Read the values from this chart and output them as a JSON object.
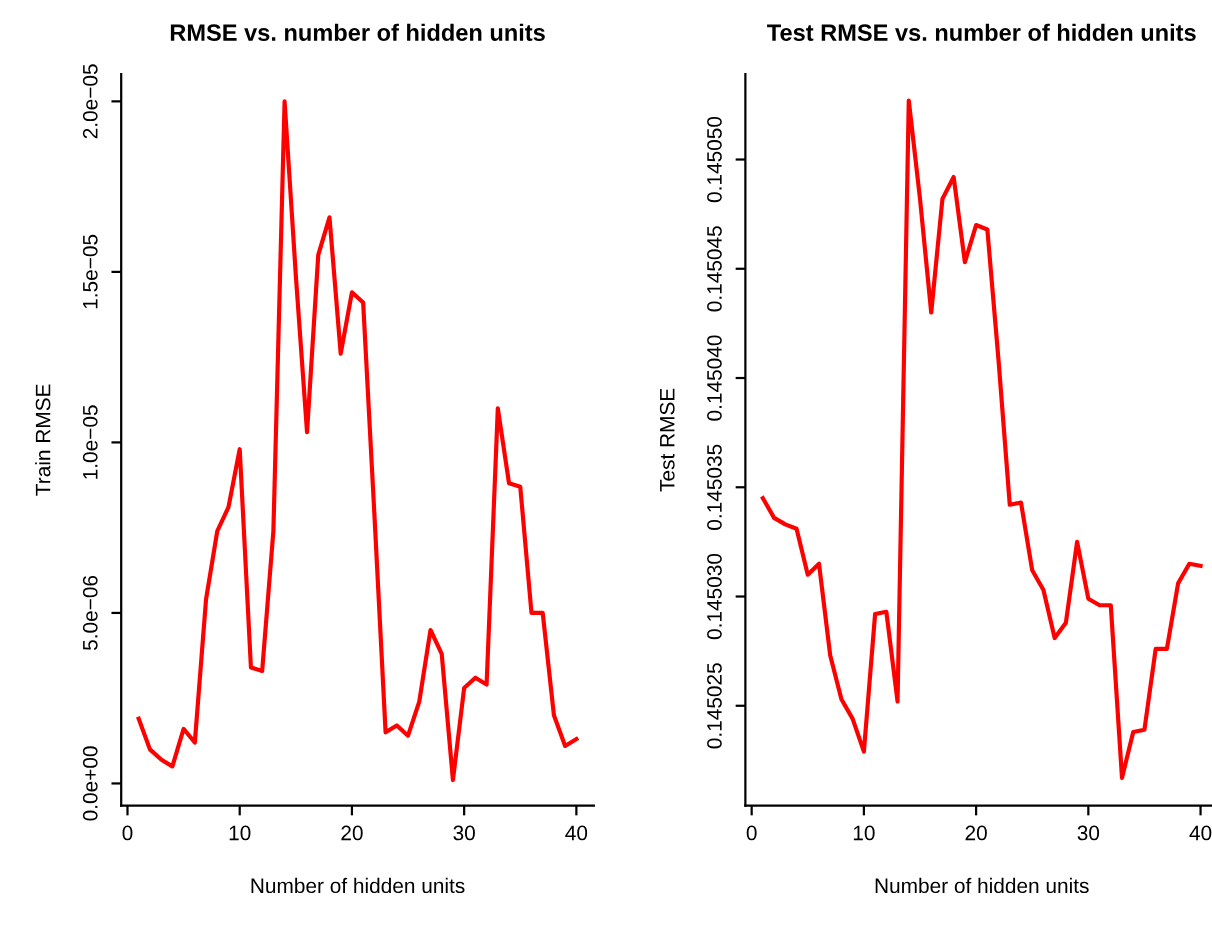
{
  "chart_data": [
    {
      "type": "line",
      "title": "RMSE vs. number of hidden units",
      "xlabel": "Number of hidden units",
      "ylabel": "Train RMSE",
      "x": [
        1,
        2,
        3,
        4,
        5,
        6,
        7,
        8,
        9,
        10,
        11,
        12,
        13,
        14,
        15,
        16,
        17,
        18,
        19,
        20,
        21,
        22,
        23,
        24,
        25,
        26,
        27,
        28,
        29,
        30,
        31,
        32,
        33,
        34,
        35,
        36,
        37,
        38,
        39,
        40
      ],
      "series": [
        {
          "color": "#ff0000",
          "values": [
            1.9e-06,
            1e-06,
            7e-07,
            5e-07,
            1.6e-06,
            1.2e-06,
            5.4e-06,
            7.4e-06,
            8.1e-06,
            9.8e-06,
            3.4e-06,
            3.3e-06,
            7.4e-06,
            2e-05,
            1.49e-05,
            1.03e-05,
            1.55e-05,
            1.66e-05,
            1.26e-05,
            1.44e-05,
            1.41e-05,
            7.9e-06,
            1.5e-06,
            1.7e-06,
            1.4e-06,
            2.4e-06,
            4.5e-06,
            3.8e-06,
            1e-07,
            2.8e-06,
            3.1e-06,
            2.9e-06,
            1.1e-05,
            8.8e-06,
            8.7e-06,
            5e-06,
            5e-06,
            2e-06,
            1.1e-06,
            1.3e-06
          ]
        }
      ],
      "xlim": [
        -0.56,
        41.56
      ],
      "xticks": [
        0,
        10,
        20,
        30,
        40
      ],
      "ylim": [
        -6.5e-07,
        2.08e-05
      ],
      "yticks": [
        {
          "value": 0,
          "label": "0.0e+00"
        },
        {
          "value": 5e-06,
          "label": "5.0e−06"
        },
        {
          "value": 1e-05,
          "label": "1.0e−05"
        },
        {
          "value": 1.5e-05,
          "label": "1.5e−05"
        },
        {
          "value": 2e-05,
          "label": "2.0e−05"
        }
      ],
      "grid": false,
      "legend": false,
      "line_style": "solid"
    },
    {
      "type": "line",
      "title": "Test RMSE vs. number of hidden units",
      "xlabel": "Number of hidden units",
      "ylabel": "Test RMSE",
      "x": [
        1,
        2,
        3,
        4,
        5,
        6,
        7,
        8,
        9,
        10,
        11,
        12,
        13,
        14,
        15,
        16,
        17,
        18,
        19,
        20,
        21,
        22,
        23,
        24,
        25,
        26,
        27,
        28,
        29,
        30,
        31,
        32,
        33,
        34,
        35,
        36,
        37,
        38,
        39,
        40
      ],
      "series": [
        {
          "color": "#ff0000",
          "values": [
            0.1450345,
            0.1450336,
            0.1450333,
            0.1450331,
            0.145031,
            0.1450315,
            0.1450273,
            0.1450253,
            0.1450244,
            0.1450229,
            0.1450292,
            0.1450293,
            0.1450252,
            0.1450527,
            0.1450482,
            0.145043,
            0.1450482,
            0.1450492,
            0.1450453,
            0.145047,
            0.1450468,
            0.1450408,
            0.1450342,
            0.1450343,
            0.1450312,
            0.1450303,
            0.1450281,
            0.1450288,
            0.1450325,
            0.1450299,
            0.1450296,
            0.1450296,
            0.1450217,
            0.1450238,
            0.1450239,
            0.1450276,
            0.1450276,
            0.1450306,
            0.1450315,
            0.1450314
          ]
        }
      ],
      "xlim": [
        -0.56,
        41.56
      ],
      "xticks": [
        0,
        10,
        20,
        30,
        40
      ],
      "ylim": [
        0.14502043,
        0.14505391
      ],
      "yticks": [
        {
          "value": 0.145025,
          "label": "0.145025"
        },
        {
          "value": 0.14503,
          "label": "0.145030"
        },
        {
          "value": 0.145035,
          "label": "0.145035"
        },
        {
          "value": 0.14504,
          "label": "0.145040"
        },
        {
          "value": 0.145045,
          "label": "0.145045"
        },
        {
          "value": 0.14505,
          "label": "0.145050"
        }
      ],
      "grid": false,
      "legend": false,
      "line_style": "solid"
    }
  ]
}
